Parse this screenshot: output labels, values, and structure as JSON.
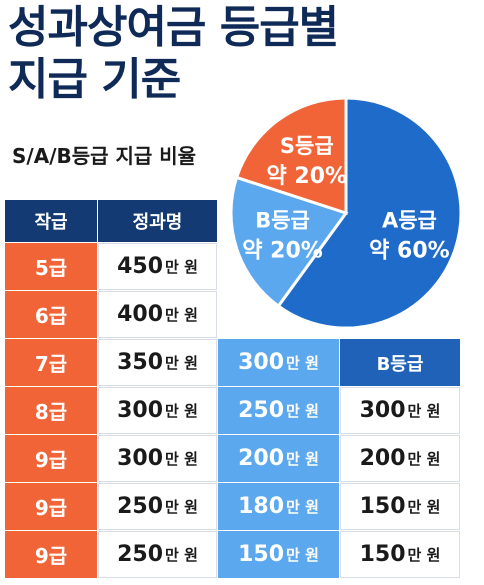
{
  "title": {
    "line1": "성과상여금 등급별",
    "line2": "지급 기준"
  },
  "subtitle": "S/A/B등급 지급 비율",
  "colors": {
    "s": "#f16437",
    "a": "#1f6bc9",
    "b": "#5ca8ef",
    "header": "#133a73"
  },
  "chart_data": [
    {
      "type": "pie",
      "slices": [
        {
          "label": "A등급",
          "value_text": "약 60%",
          "value": 60,
          "color": "#1f6bc9"
        },
        {
          "label": "B등급",
          "value_text": "약 20%",
          "value": 20,
          "color": "#5ca8ef"
        },
        {
          "label": "S등급",
          "value_text": "약 20%",
          "value": 20,
          "color": "#f16437"
        }
      ]
    },
    {
      "type": "table",
      "headers": {
        "grade": "작급",
        "amount": "정과명",
        "b_grade": "B등급"
      },
      "unit": "만 원",
      "rows": [
        {
          "grade": "5급",
          "amount": "450",
          "mid": null,
          "right": null
        },
        {
          "grade": "6급",
          "amount": "400",
          "mid": null,
          "right": null
        },
        {
          "grade": "7급",
          "amount": "350",
          "mid": "300",
          "right": null
        },
        {
          "grade": "8급",
          "amount": "300",
          "mid": "250",
          "right": "300"
        },
        {
          "grade": "9급",
          "amount": "300",
          "mid": "200",
          "right": "200"
        },
        {
          "grade": "9급",
          "amount": "250",
          "mid": "180",
          "right": "150"
        },
        {
          "grade": "9급",
          "amount": "250",
          "mid": "150",
          "right": "150"
        }
      ]
    }
  ]
}
